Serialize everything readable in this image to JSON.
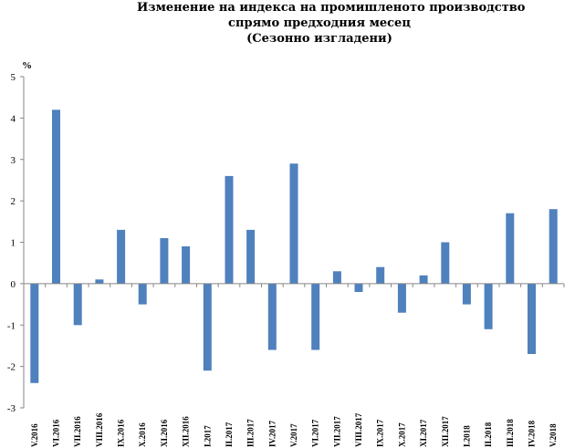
{
  "chart_data": {
    "type": "bar",
    "title": [
      "Изменение на индекса на промишленото производство",
      "спрямо предходния месец",
      "(Сезонно изгладени)"
    ],
    "ylabel": "%",
    "ylim": [
      -3,
      5
    ],
    "yticks": [
      5,
      4,
      3,
      2,
      1,
      0,
      -1,
      -2,
      -3
    ],
    "grid": false,
    "colors": {
      "bar": "#4f81bd",
      "axis": "#868686"
    },
    "categories": [
      "V.2016",
      "VI.2016",
      "VII.2016",
      "VIII.2016",
      "IX.2016",
      "X.2016",
      "XI.2016",
      "XII.2016",
      "I.2017",
      "II.2017",
      "III.2017",
      "IV.2017",
      "V.2017",
      "VI.2017",
      "VII.2017",
      "VIII.2017",
      "IX.2017",
      "X.2017",
      "XI.2017",
      "XII.2017",
      "I.2018",
      "II.2018",
      "III.2018",
      "IV.2018",
      "V.2018"
    ],
    "values": [
      -2.4,
      4.2,
      -1.0,
      0.1,
      1.3,
      -0.5,
      1.1,
      0.9,
      -2.1,
      2.6,
      1.3,
      -1.6,
      2.9,
      -1.6,
      0.3,
      -0.2,
      0.4,
      -0.7,
      0.2,
      1.0,
      -0.5,
      -1.1,
      1.7,
      -1.7,
      1.8
    ]
  }
}
